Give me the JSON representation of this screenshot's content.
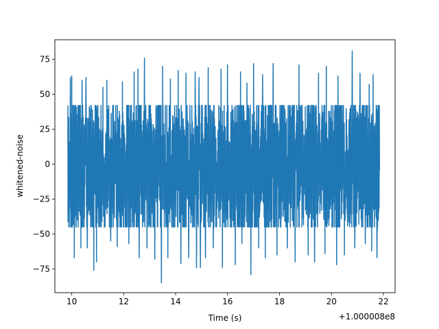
{
  "chart_data": {
    "type": "line",
    "title": "",
    "xlabel": "Time (s)",
    "ylabel": "whitened-noise",
    "x_offset_label": "+1.000008e8",
    "xlim": [
      9.35,
      22.45
    ],
    "ylim": [
      -92,
      89
    ],
    "x_ticks": [
      10,
      12,
      14,
      16,
      18,
      20,
      22
    ],
    "x_tick_labels": [
      "10",
      "12",
      "14",
      "16",
      "18",
      "20",
      "22"
    ],
    "y_ticks": [
      -75,
      -50,
      -25,
      0,
      25,
      50,
      75
    ],
    "y_tick_labels": [
      "−75",
      "−50",
      "−25",
      "0",
      "25",
      "50",
      "75"
    ],
    "grid": false,
    "series": [
      {
        "color": "#1f77b4",
        "x_range": [
          9.85,
          21.85
        ],
        "typical_band": [
          -45,
          42
        ],
        "noise_sigma": 18,
        "peaks": [
          [
            9.95,
            62
          ],
          [
            10.0,
            63
          ],
          [
            10.4,
            60
          ],
          [
            10.55,
            62
          ],
          [
            11.2,
            55
          ],
          [
            11.35,
            60
          ],
          [
            11.5,
            65
          ],
          [
            11.95,
            59
          ],
          [
            12.2,
            71
          ],
          [
            12.4,
            66
          ],
          [
            12.55,
            68
          ],
          [
            12.8,
            76
          ],
          [
            13.5,
            70
          ],
          [
            13.8,
            61
          ],
          [
            14.1,
            67
          ],
          [
            14.4,
            65
          ],
          [
            14.75,
            66
          ],
          [
            14.9,
            62
          ],
          [
            15.25,
            69
          ],
          [
            15.75,
            68
          ],
          [
            16.0,
            71
          ],
          [
            16.5,
            66
          ],
          [
            16.75,
            58
          ],
          [
            17.0,
            72
          ],
          [
            17.35,
            64
          ],
          [
            17.75,
            72
          ],
          [
            17.9,
            71
          ],
          [
            18.3,
            59
          ],
          [
            18.75,
            71
          ],
          [
            19.5,
            65
          ],
          [
            19.8,
            70
          ],
          [
            20.25,
            63
          ],
          [
            20.5,
            68
          ],
          [
            20.8,
            81
          ],
          [
            21.1,
            65
          ],
          [
            21.45,
            57
          ],
          [
            21.6,
            64
          ]
        ],
        "troughs": [
          [
            10.1,
            -67
          ],
          [
            10.35,
            -60
          ],
          [
            10.6,
            -60
          ],
          [
            10.85,
            -76
          ],
          [
            10.95,
            -70
          ],
          [
            11.5,
            -55
          ],
          [
            11.75,
            -59
          ],
          [
            12.2,
            -57
          ],
          [
            12.6,
            -67
          ],
          [
            12.9,
            -60
          ],
          [
            13.2,
            -68
          ],
          [
            13.45,
            -85
          ],
          [
            13.7,
            -67
          ],
          [
            14.2,
            -71
          ],
          [
            14.5,
            -67
          ],
          [
            14.8,
            -74
          ],
          [
            14.95,
            -74
          ],
          [
            15.15,
            -67
          ],
          [
            15.45,
            -60
          ],
          [
            15.8,
            -74
          ],
          [
            16.3,
            -72
          ],
          [
            16.55,
            -57
          ],
          [
            16.9,
            -79
          ],
          [
            17.2,
            -60
          ],
          [
            17.45,
            -67
          ],
          [
            17.9,
            -65
          ],
          [
            18.3,
            -60
          ],
          [
            18.6,
            -70
          ],
          [
            19.1,
            -65
          ],
          [
            19.35,
            -70
          ],
          [
            19.75,
            -64
          ],
          [
            20.2,
            -72
          ],
          [
            20.5,
            -65
          ],
          [
            20.9,
            -60
          ],
          [
            21.3,
            -57
          ],
          [
            21.55,
            -62
          ],
          [
            21.75,
            -67
          ]
        ]
      }
    ]
  }
}
